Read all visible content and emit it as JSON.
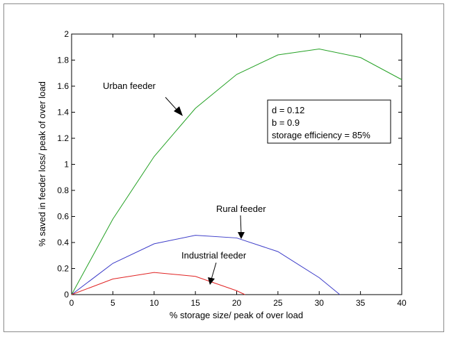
{
  "chart_data": {
    "type": "line",
    "title": "",
    "xlabel": "% storage size/ peak of over load",
    "ylabel": "% saved in feeder loss/ peak of over load",
    "xlim": [
      0,
      40
    ],
    "ylim": [
      0,
      2
    ],
    "x_ticks": [
      "0",
      "5",
      "10",
      "15",
      "20",
      "25",
      "30",
      "35",
      "40"
    ],
    "y_ticks": [
      "0",
      "0.2",
      "0.4",
      "0.6",
      "0.8",
      "1",
      "1.2",
      "1.4",
      "1.6",
      "1.8",
      "2"
    ],
    "grid": false,
    "series": [
      {
        "name": "Urban feeder",
        "color": "#22a022",
        "points": [
          [
            0,
            0
          ],
          [
            5,
            0.58
          ],
          [
            10,
            1.06
          ],
          [
            15,
            1.43
          ],
          [
            20,
            1.69
          ],
          [
            25,
            1.84
          ],
          [
            30,
            1.885
          ],
          [
            35,
            1.82
          ],
          [
            40,
            1.65
          ]
        ]
      },
      {
        "name": "Rural feeder",
        "color": "#3a3ac8",
        "points": [
          [
            0,
            0
          ],
          [
            5,
            0.24
          ],
          [
            10,
            0.39
          ],
          [
            15,
            0.455
          ],
          [
            20,
            0.435
          ],
          [
            25,
            0.33
          ],
          [
            30,
            0.13
          ],
          [
            32.5,
            0
          ]
        ]
      },
      {
        "name": "Industrial feeder",
        "color": "#e02020",
        "points": [
          [
            0,
            0
          ],
          [
            5,
            0.12
          ],
          [
            10,
            0.17
          ],
          [
            15,
            0.14
          ],
          [
            20,
            0.03
          ],
          [
            21,
            0
          ]
        ]
      }
    ],
    "annotations": [
      {
        "text": "Urban feeder",
        "series": "Urban feeder"
      },
      {
        "text": "Rural feeder",
        "series": "Rural feeder"
      },
      {
        "text": "Industrial feeder",
        "series": "Industrial feeder"
      }
    ],
    "parameter_box": [
      "d = 0.12",
      "b = 0.9",
      "storage efficiency = 85%"
    ]
  }
}
